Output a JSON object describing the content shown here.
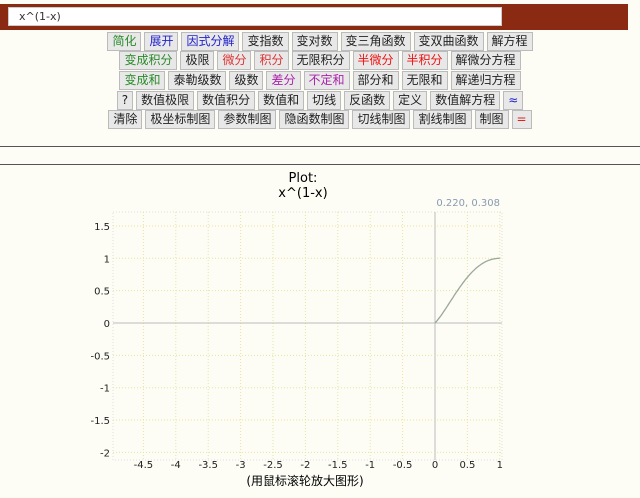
{
  "input": {
    "value": "x^(1-x)"
  },
  "button_rows": [
    [
      {
        "label": "简化",
        "color": "#2a8a2a"
      },
      {
        "label": "展开",
        "color": "#2222cc"
      },
      {
        "label": "因式分解",
        "color": "#2222cc"
      },
      {
        "label": "变指数",
        "color": "#222"
      },
      {
        "label": "变对数",
        "color": "#222"
      },
      {
        "label": "变三角函数",
        "color": "#222"
      },
      {
        "label": "变双曲函数",
        "color": "#222"
      },
      {
        "label": "解方程",
        "color": "#222"
      }
    ],
    [
      {
        "label": "变成积分",
        "color": "#2a8a2a"
      },
      {
        "label": "极限",
        "color": "#222"
      },
      {
        "label": "微分",
        "color": "#dd3333"
      },
      {
        "label": "积分",
        "color": "#dd3333"
      },
      {
        "label": "无限积分",
        "color": "#222"
      },
      {
        "label": "半微分",
        "color": "#ee1111"
      },
      {
        "label": "半积分",
        "color": "#ee1111"
      },
      {
        "label": "解微分方程",
        "color": "#222"
      }
    ],
    [
      {
        "label": "变成和",
        "color": "#2a8a2a"
      },
      {
        "label": "泰勒级数",
        "color": "#222"
      },
      {
        "label": "级数",
        "color": "#222"
      },
      {
        "label": "差分",
        "color": "#aa22aa"
      },
      {
        "label": "不定和",
        "color": "#aa22aa"
      },
      {
        "label": "部分和",
        "color": "#222"
      },
      {
        "label": "无限和",
        "color": "#222"
      },
      {
        "label": "解递归方程",
        "color": "#222"
      }
    ],
    [
      {
        "label": "?",
        "color": "#222"
      },
      {
        "label": "数值极限",
        "color": "#222"
      },
      {
        "label": "数值积分",
        "color": "#222"
      },
      {
        "label": "数值和",
        "color": "#222"
      },
      {
        "label": "切线",
        "color": "#222"
      },
      {
        "label": "反函数",
        "color": "#222"
      },
      {
        "label": "定义",
        "color": "#222"
      },
      {
        "label": "数值解方程",
        "color": "#222"
      },
      {
        "label": "≈",
        "color": "#2222cc"
      }
    ],
    [
      {
        "label": "清除",
        "color": "#222"
      },
      {
        "label": "极坐标制图",
        "color": "#222"
      },
      {
        "label": "参数制图",
        "color": "#222"
      },
      {
        "label": "隐函数制图",
        "color": "#222"
      },
      {
        "label": "切线制图",
        "color": "#222"
      },
      {
        "label": "割线制图",
        "color": "#222"
      },
      {
        "label": "制图",
        "color": "#222"
      },
      {
        "label": "=",
        "color": "#dd2222"
      }
    ]
  ],
  "plot": {
    "title": "Plot:",
    "expression": "x^(1-x)",
    "cursor_readout": "0.220, 0.308",
    "hint": "(用鼠标滚轮放大图形)"
  },
  "chart_data": {
    "type": "line",
    "title": "Plot: x^(1-x)",
    "xlim": [
      -5,
      1.05
    ],
    "ylim": [
      -2.12,
      1.72
    ],
    "x_ticks": [
      "-4.5",
      "-4",
      "-3.5",
      "-3",
      "-2.5",
      "-2",
      "-1.5",
      "-1",
      "-0.5",
      "0",
      "0.5",
      "1"
    ],
    "y_ticks": [
      "1.5",
      "1",
      "0.5",
      "0",
      "-0.5",
      "-1",
      "-1.5",
      "-2"
    ],
    "grid": true,
    "series": [
      {
        "function": "x^(1-x)",
        "domain": [
          0,
          1
        ],
        "color": "#9aa89a"
      }
    ]
  }
}
